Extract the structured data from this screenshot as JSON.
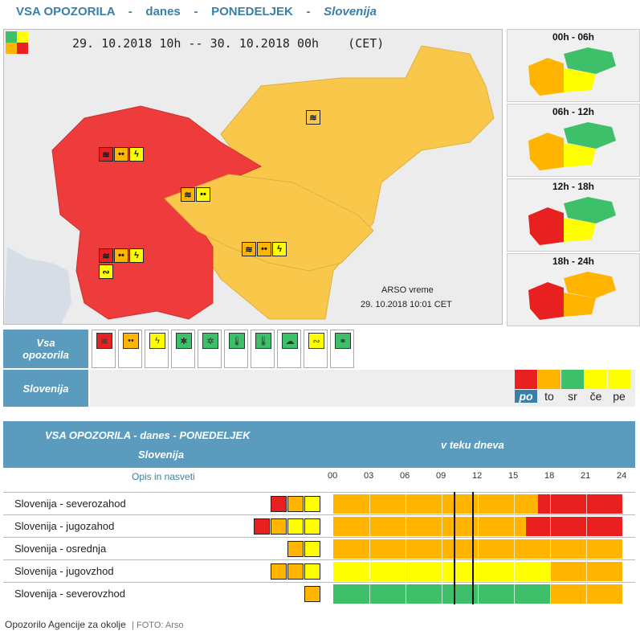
{
  "header": {
    "part1": "VSA OPOZORILA",
    "sep1": "-",
    "part2": "danes",
    "sep2": "-",
    "part3": "PONEDELJEK",
    "sep3": "-",
    "region": "Slovenija"
  },
  "map": {
    "period": "29. 10.2018 10h -- 30. 10.2018 00h    (CET)",
    "stamp_line1": "ARSO vreme",
    "stamp_line2": "29. 10.2018  10:01 CET"
  },
  "thumbnails": [
    {
      "label": "00h - 06h"
    },
    {
      "label": "06h - 12h"
    },
    {
      "label": "12h - 18h"
    },
    {
      "label": "18h - 24h"
    }
  ],
  "panel": {
    "row1_line1": "Vsa",
    "row1_line2": "opozorila",
    "row2": "Slovenija"
  },
  "hazards": [
    {
      "icon": "wind-icon",
      "glyph": "≋",
      "color": "#e8201f"
    },
    {
      "icon": "rain-icon",
      "glyph": "••",
      "color": "#ffb400"
    },
    {
      "icon": "thunderstorm-icon",
      "glyph": "ϟ",
      "color": "#ffff00"
    },
    {
      "icon": "snow-icon",
      "glyph": "✱",
      "color": "#3ec06a"
    },
    {
      "icon": "snow-rain-icon",
      "glyph": "✲",
      "color": "#3ec06a"
    },
    {
      "icon": "high-temperature-icon",
      "glyph": "🌡",
      "color": "#3ec06a"
    },
    {
      "icon": "low-temperature-icon",
      "glyph": "🌡",
      "color": "#3ec06a"
    },
    {
      "icon": "fog-icon",
      "glyph": "☁",
      "color": "#3ec06a"
    },
    {
      "icon": "coastal-event-icon",
      "glyph": "∾",
      "color": "#ffff00"
    },
    {
      "icon": "forest-fire-icon",
      "glyph": "⚭",
      "color": "#3ec06a"
    }
  ],
  "levels": [
    {
      "abbr": "po",
      "color": "#e8201f",
      "selected": true
    },
    {
      "abbr": "to",
      "color": "#ffb400",
      "selected": false
    },
    {
      "abbr": "sr",
      "color": "#3ec06a",
      "selected": false
    },
    {
      "abbr": "če",
      "color": "#ffff00",
      "selected": false
    },
    {
      "abbr": "pe",
      "color": "#ffff00",
      "selected": false
    }
  ],
  "table": {
    "title": "VSA OPOZORILA - danes - PONEDELJEK",
    "subtitle": "Slovenija",
    "during_day": "v teku dneva",
    "desc_header": "Opis in nasveti",
    "hours": [
      "00",
      "03",
      "06",
      "09",
      "12",
      "15",
      "18",
      "21",
      "24"
    ],
    "rows": [
      {
        "name": "Slovenija - severozahod",
        "icons": [
          "#e8201f",
          "#ffb400",
          "#ffff00"
        ],
        "segments": [
          {
            "from": 0,
            "to": 17,
            "color": "#ffb400"
          },
          {
            "from": 17,
            "to": 24,
            "color": "#e8201f"
          }
        ]
      },
      {
        "name": "Slovenija - jugozahod",
        "icons": [
          "#e8201f",
          "#ffb400",
          "#ffff00",
          "#ffff00"
        ],
        "segments": [
          {
            "from": 0,
            "to": 16,
            "color": "#ffb400"
          },
          {
            "from": 16,
            "to": 24,
            "color": "#e8201f"
          }
        ]
      },
      {
        "name": "Slovenija - osrednja",
        "icons": [
          "#ffb400",
          "#ffff00"
        ],
        "segments": [
          {
            "from": 0,
            "to": 24,
            "color": "#ffb400"
          }
        ]
      },
      {
        "name": "Slovenija - jugovzhod",
        "icons": [
          "#ffb400",
          "#ffb400",
          "#ffff00"
        ],
        "segments": [
          {
            "from": 0,
            "to": 18,
            "color": "#ffff00"
          },
          {
            "from": 18,
            "to": 24,
            "color": "#ffb400"
          }
        ]
      },
      {
        "name": "Slovenija - severovzhod",
        "icons": [
          "#ffb400"
        ],
        "segments": [
          {
            "from": 0,
            "to": 18,
            "color": "#3ec06a"
          },
          {
            "from": 18,
            "to": 24,
            "color": "#ffb400"
          }
        ]
      }
    ]
  },
  "caption": {
    "text": "Opozorilo Agencije za okolje",
    "source": "FOTO: Arso"
  }
}
